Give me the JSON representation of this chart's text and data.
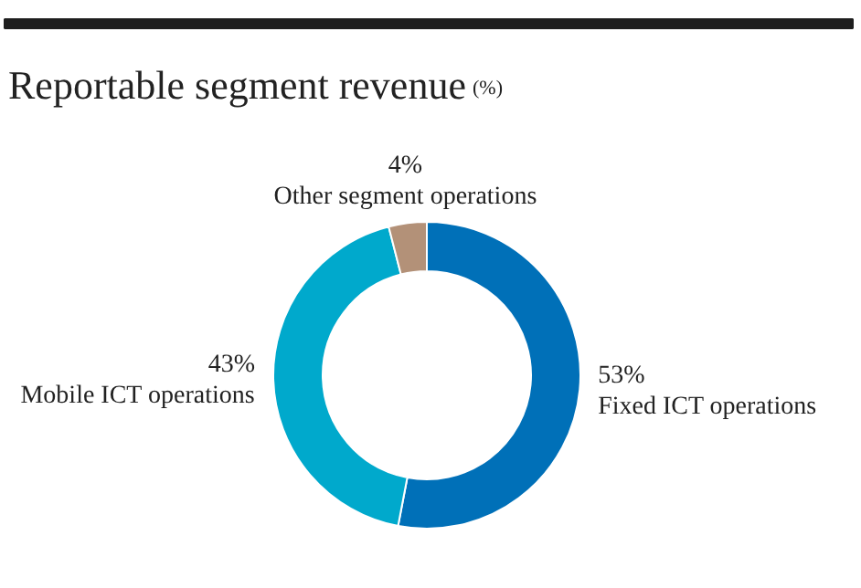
{
  "chart_data": {
    "type": "donut",
    "title": "Reportable segment revenue",
    "subtitle": "(%)",
    "categories": [
      "Fixed ICT operations",
      "Mobile ICT operations",
      "Other segment operations"
    ],
    "values": [
      53,
      43,
      4
    ],
    "colors": [
      "#0070b8",
      "#00a9cc",
      "#b39178"
    ],
    "value_labels": [
      "53%",
      "43%",
      "4%"
    ]
  }
}
